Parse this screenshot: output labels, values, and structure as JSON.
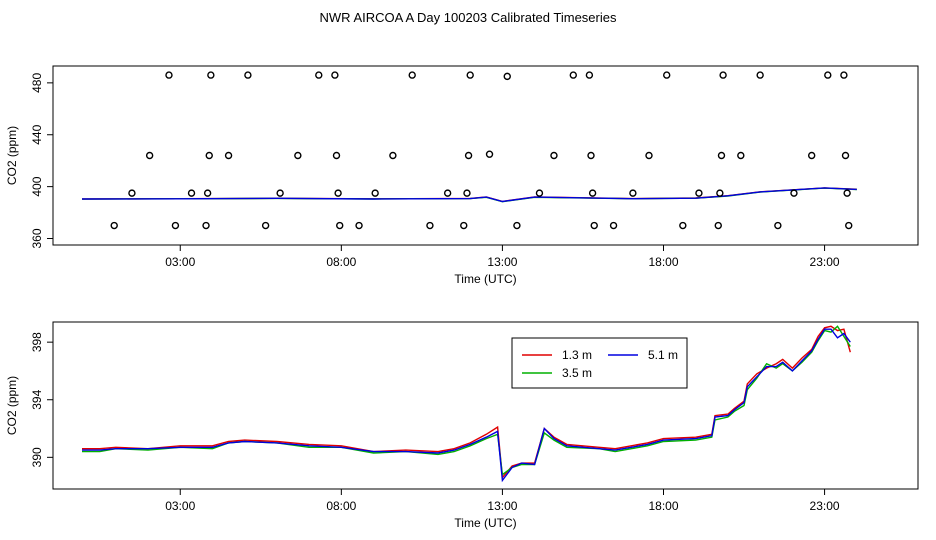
{
  "figure": {
    "title": "NWR AIRCOA A  Day 100203  Calibrated Timeseries"
  },
  "chart_data": [
    {
      "type": "scatter",
      "xlabel": "Time (UTC)",
      "ylabel": "CO2 (ppm)",
      "xlim": [
        -0.95,
        25.9
      ],
      "ylim": [
        355,
        493
      ],
      "x_ticks": [
        3,
        8,
        13,
        18,
        23
      ],
      "x_tick_labels": [
        "03:00",
        "08:00",
        "13:00",
        "18:00",
        "23:00"
      ],
      "y_ticks": [
        360,
        400,
        440,
        480
      ],
      "y_tick_labels": [
        "360",
        "400",
        "440",
        "480"
      ],
      "grid": false,
      "points": [
        [
          0.95,
          370
        ],
        [
          1.5,
          395
        ],
        [
          2.05,
          424
        ],
        [
          2.65,
          486
        ],
        [
          2.85,
          370
        ],
        [
          3.35,
          395
        ],
        [
          3.8,
          370
        ],
        [
          3.85,
          395
        ],
        [
          3.9,
          424
        ],
        [
          3.95,
          486
        ],
        [
          4.5,
          424
        ],
        [
          5.1,
          486
        ],
        [
          5.65,
          370
        ],
        [
          6.1,
          395
        ],
        [
          6.65,
          424
        ],
        [
          7.3,
          486
        ],
        [
          7.8,
          486
        ],
        [
          7.85,
          424
        ],
        [
          7.9,
          395
        ],
        [
          7.95,
          370
        ],
        [
          8.55,
          370
        ],
        [
          9.05,
          395
        ],
        [
          9.6,
          424
        ],
        [
          10.2,
          486
        ],
        [
          10.75,
          370
        ],
        [
          11.3,
          395
        ],
        [
          11.8,
          370
        ],
        [
          11.9,
          395
        ],
        [
          11.95,
          424
        ],
        [
          12.0,
          486
        ],
        [
          12.6,
          425
        ],
        [
          13.15,
          485
        ],
        [
          13.45,
          370
        ],
        [
          14.15,
          395
        ],
        [
          14.6,
          424
        ],
        [
          15.2,
          486
        ],
        [
          15.7,
          486
        ],
        [
          15.75,
          424
        ],
        [
          15.8,
          395
        ],
        [
          15.85,
          370
        ],
        [
          16.45,
          370
        ],
        [
          17.05,
          395
        ],
        [
          17.55,
          424
        ],
        [
          18.1,
          486
        ],
        [
          18.6,
          370
        ],
        [
          19.1,
          395
        ],
        [
          19.7,
          370
        ],
        [
          19.75,
          395
        ],
        [
          19.8,
          424
        ],
        [
          19.85,
          486
        ],
        [
          20.4,
          424
        ],
        [
          21.0,
          486
        ],
        [
          21.55,
          370
        ],
        [
          22.05,
          395
        ],
        [
          22.6,
          424
        ],
        [
          23.1,
          486
        ],
        [
          23.6,
          486
        ],
        [
          23.65,
          424
        ],
        [
          23.7,
          395
        ],
        [
          23.75,
          370
        ]
      ],
      "series": [
        {
          "color": "#e00000",
          "values": [
            [
              -0.05,
              390.5
            ],
            [
              3,
              390.7
            ],
            [
              6,
              391
            ],
            [
              9,
              390.6
            ],
            [
              12,
              390.9
            ],
            [
              12.5,
              392
            ],
            [
              13,
              388.6
            ],
            [
              14,
              392
            ],
            [
              17,
              390.8
            ],
            [
              19,
              391.2
            ],
            [
              20,
              393
            ],
            [
              21,
              396
            ],
            [
              23,
              399
            ],
            [
              24,
              398
            ]
          ]
        },
        {
          "color": "#00b000",
          "values": [
            [
              -0.05,
              390.4
            ],
            [
              3,
              390.6
            ],
            [
              6,
              390.9
            ],
            [
              9,
              390.5
            ],
            [
              12,
              390.8
            ],
            [
              12.5,
              391.8
            ],
            [
              13,
              388.4
            ],
            [
              14,
              391.8
            ],
            [
              17,
              390.7
            ],
            [
              19,
              391.1
            ],
            [
              20,
              392.8
            ],
            [
              21,
              395.8
            ],
            [
              23,
              398.9
            ],
            [
              24,
              397.8
            ]
          ]
        },
        {
          "color": "#0000e0",
          "values": [
            [
              -0.05,
              390.5
            ],
            [
              3,
              390.6
            ],
            [
              6,
              391
            ],
            [
              9,
              390.5
            ],
            [
              12,
              390.8
            ],
            [
              12.5,
              391.9
            ],
            [
              13,
              388.5
            ],
            [
              14,
              391.9
            ],
            [
              17,
              390.7
            ],
            [
              19,
              391.1
            ],
            [
              20,
              392.9
            ],
            [
              21,
              395.9
            ],
            [
              23,
              399
            ],
            [
              24,
              397.9
            ]
          ]
        }
      ]
    },
    {
      "type": "line",
      "xlabel": "Time (UTC)",
      "ylabel": "CO2 (ppm)",
      "xlim": [
        -0.95,
        25.9
      ],
      "ylim": [
        387.8,
        399.4
      ],
      "x_ticks": [
        3,
        8,
        13,
        18,
        23
      ],
      "x_tick_labels": [
        "03:00",
        "08:00",
        "13:00",
        "18:00",
        "23:00"
      ],
      "y_ticks": [
        390,
        394,
        398
      ],
      "y_tick_labels": [
        "390",
        "394",
        "398"
      ],
      "grid": false,
      "legend_position": "top-right",
      "series": [
        {
          "name": "1.3 m",
          "color": "#e00000",
          "values": [
            [
              -0.05,
              390.6
            ],
            [
              0.5,
              390.6
            ],
            [
              1,
              390.7
            ],
            [
              2,
              390.6
            ],
            [
              3,
              390.8
            ],
            [
              4,
              390.8
            ],
            [
              4.5,
              391.1
            ],
            [
              5,
              391.2
            ],
            [
              6,
              391.1
            ],
            [
              7,
              390.9
            ],
            [
              8,
              390.8
            ],
            [
              9,
              390.4
            ],
            [
              10,
              390.5
            ],
            [
              11,
              390.4
            ],
            [
              11.5,
              390.6
            ],
            [
              12,
              391
            ],
            [
              12.5,
              391.6
            ],
            [
              12.85,
              392.1
            ],
            [
              13.0,
              388.6
            ],
            [
              13.3,
              389.4
            ],
            [
              13.6,
              389.6
            ],
            [
              14.0,
              389.6
            ],
            [
              14.3,
              392.0
            ],
            [
              14.6,
              391.4
            ],
            [
              15,
              390.9
            ],
            [
              16,
              390.7
            ],
            [
              16.5,
              390.6
            ],
            [
              17,
              390.8
            ],
            [
              17.5,
              391.0
            ],
            [
              18,
              391.3
            ],
            [
              19,
              391.4
            ],
            [
              19.5,
              391.6
            ],
            [
              19.6,
              392.9
            ],
            [
              20.0,
              393.0
            ],
            [
              20.2,
              393.4
            ],
            [
              20.5,
              393.9
            ],
            [
              20.6,
              395.1
            ],
            [
              20.9,
              395.8
            ],
            [
              21.2,
              396.2
            ],
            [
              21.5,
              396.5
            ],
            [
              21.7,
              396.8
            ],
            [
              22.0,
              396.2
            ],
            [
              22.3,
              396.9
            ],
            [
              22.6,
              397.5
            ],
            [
              22.8,
              398.4
            ],
            [
              23.0,
              399.0
            ],
            [
              23.2,
              399.1
            ],
            [
              23.4,
              398.8
            ],
            [
              23.6,
              398.9
            ],
            [
              23.8,
              397.3
            ]
          ]
        },
        {
          "name": "3.5 m",
          "color": "#00b000",
          "values": [
            [
              -0.05,
              390.4
            ],
            [
              0.5,
              390.4
            ],
            [
              1,
              390.6
            ],
            [
              2,
              390.5
            ],
            [
              3,
              390.7
            ],
            [
              4,
              390.6
            ],
            [
              4.5,
              391.0
            ],
            [
              5,
              391.1
            ],
            [
              6,
              391.0
            ],
            [
              7,
              390.7
            ],
            [
              8,
              390.7
            ],
            [
              9,
              390.3
            ],
            [
              10,
              390.4
            ],
            [
              11,
              390.2
            ],
            [
              11.5,
              390.4
            ],
            [
              12,
              390.8
            ],
            [
              12.5,
              391.3
            ],
            [
              12.85,
              391.6
            ],
            [
              13.0,
              388.8
            ],
            [
              13.3,
              389.3
            ],
            [
              13.6,
              389.5
            ],
            [
              14.0,
              389.5
            ],
            [
              14.3,
              391.7
            ],
            [
              14.6,
              391.2
            ],
            [
              15,
              390.7
            ],
            [
              16,
              390.6
            ],
            [
              16.5,
              390.4
            ],
            [
              17,
              390.6
            ],
            [
              17.5,
              390.8
            ],
            [
              18,
              391.1
            ],
            [
              19,
              391.2
            ],
            [
              19.5,
              391.4
            ],
            [
              19.6,
              392.6
            ],
            [
              20.0,
              392.8
            ],
            [
              20.2,
              393.2
            ],
            [
              20.5,
              393.6
            ],
            [
              20.6,
              394.7
            ],
            [
              20.9,
              395.5
            ],
            [
              21.2,
              396.5
            ],
            [
              21.5,
              396.2
            ],
            [
              21.7,
              396.5
            ],
            [
              22.0,
              396.0
            ],
            [
              22.3,
              396.6
            ],
            [
              22.6,
              397.3
            ],
            [
              22.8,
              398.1
            ],
            [
              23.0,
              398.8
            ],
            [
              23.2,
              398.7
            ],
            [
              23.4,
              399.1
            ],
            [
              23.6,
              398.4
            ],
            [
              23.8,
              397.7
            ]
          ]
        },
        {
          "name": "5.1 m",
          "color": "#0000e0",
          "values": [
            [
              -0.05,
              390.5
            ],
            [
              0.5,
              390.5
            ],
            [
              1,
              390.6
            ],
            [
              2,
              390.6
            ],
            [
              3,
              390.7
            ],
            [
              4,
              390.7
            ],
            [
              4.5,
              391.0
            ],
            [
              5,
              391.1
            ],
            [
              6,
              391.0
            ],
            [
              7,
              390.8
            ],
            [
              8,
              390.7
            ],
            [
              9,
              390.4
            ],
            [
              10,
              390.4
            ],
            [
              11,
              390.3
            ],
            [
              11.5,
              390.5
            ],
            [
              12,
              390.9
            ],
            [
              12.5,
              391.4
            ],
            [
              12.85,
              391.8
            ],
            [
              13.0,
              388.4
            ],
            [
              13.3,
              389.3
            ],
            [
              13.6,
              389.6
            ],
            [
              14.0,
              389.5
            ],
            [
              14.3,
              392.0
            ],
            [
              14.6,
              391.3
            ],
            [
              15,
              390.8
            ],
            [
              16,
              390.6
            ],
            [
              16.5,
              390.5
            ],
            [
              17,
              390.7
            ],
            [
              17.5,
              390.9
            ],
            [
              18,
              391.2
            ],
            [
              19,
              391.3
            ],
            [
              19.5,
              391.5
            ],
            [
              19.6,
              392.8
            ],
            [
              20.0,
              392.9
            ],
            [
              20.2,
              393.3
            ],
            [
              20.5,
              393.8
            ],
            [
              20.6,
              394.9
            ],
            [
              20.9,
              395.6
            ],
            [
              21.2,
              396.3
            ],
            [
              21.5,
              396.3
            ],
            [
              21.7,
              396.6
            ],
            [
              22.0,
              396.0
            ],
            [
              22.3,
              396.7
            ],
            [
              22.6,
              397.4
            ],
            [
              22.8,
              398.2
            ],
            [
              23.0,
              398.9
            ],
            [
              23.2,
              398.9
            ],
            [
              23.4,
              398.3
            ],
            [
              23.6,
              398.6
            ],
            [
              23.8,
              398.0
            ]
          ]
        }
      ]
    }
  ]
}
